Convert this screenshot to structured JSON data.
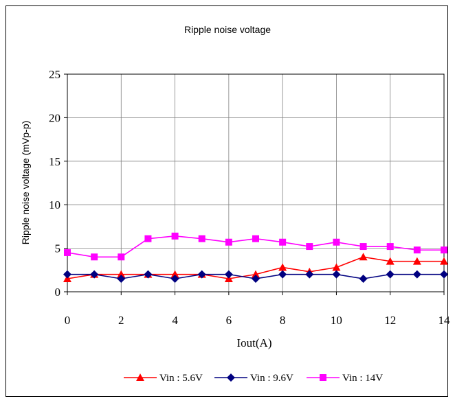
{
  "chart_data": {
    "type": "line",
    "title": "Ripple noise voltage",
    "xlabel": "Iout(A)",
    "ylabel": "Ripple noise voltage (mVp-p)",
    "xlim": [
      0,
      14
    ],
    "ylim": [
      0,
      25
    ],
    "x_ticks": [
      "0",
      "2",
      "4",
      "6",
      "8",
      "10",
      "12",
      "14"
    ],
    "y_ticks": [
      "0",
      "5",
      "10",
      "15",
      "20",
      "25"
    ],
    "grid": true,
    "legend_position": "bottom",
    "series": [
      {
        "name": "Vin : 5.6V",
        "color": "#ff0000",
        "marker": "triangle",
        "x": [
          0,
          1,
          2,
          3,
          4,
          5,
          6,
          7,
          8,
          9,
          10,
          11,
          12,
          13,
          14
        ],
        "values": [
          1.5,
          2.0,
          2.0,
          2.0,
          2.0,
          2.0,
          1.5,
          2.0,
          2.8,
          2.3,
          2.8,
          4.0,
          3.5,
          3.5,
          3.5
        ]
      },
      {
        "name": "Vin : 9.6V",
        "color": "#000080",
        "marker": "diamond",
        "x": [
          0,
          1,
          2,
          3,
          4,
          5,
          6,
          7,
          8,
          9,
          10,
          11,
          12,
          13,
          14
        ],
        "values": [
          2.0,
          2.0,
          1.5,
          2.0,
          1.5,
          2.0,
          2.0,
          1.5,
          2.0,
          2.0,
          2.0,
          1.5,
          2.0,
          2.0,
          2.0
        ]
      },
      {
        "name": "Vin : 14V",
        "color": "#ff00ff",
        "marker": "square",
        "x": [
          0,
          1,
          2,
          3,
          4,
          5,
          6,
          7,
          8,
          9,
          10,
          11,
          12,
          13,
          14
        ],
        "values": [
          4.5,
          4.0,
          4.0,
          6.1,
          6.4,
          6.1,
          5.7,
          6.1,
          5.7,
          5.2,
          5.7,
          5.2,
          5.2,
          4.8,
          4.8
        ]
      }
    ]
  }
}
